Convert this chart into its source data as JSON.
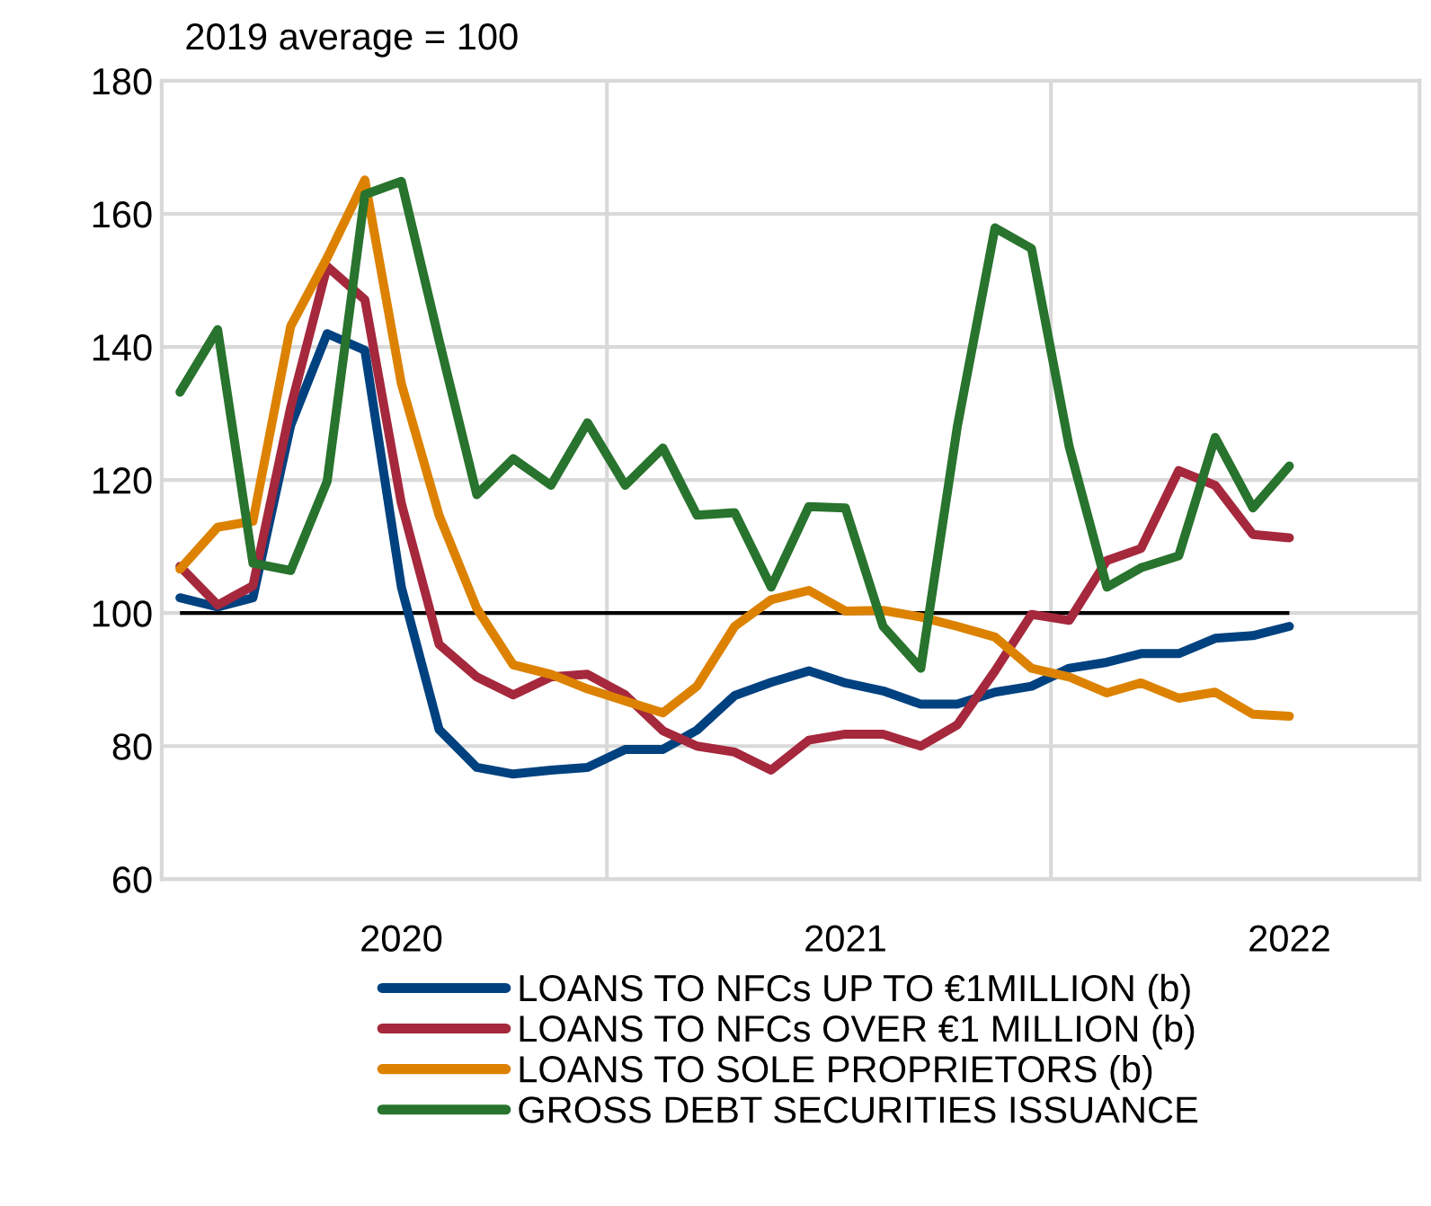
{
  "chart_data": {
    "type": "line",
    "title": "2019 average = 100",
    "x": [
      "2020-01-16",
      "2020-02-16",
      "2020-03-16",
      "2020-04-16",
      "2020-05-16",
      "2020-06-16",
      "2020-07-16",
      "2020-08-16",
      "2020-09-16",
      "2020-10-16",
      "2020-11-16",
      "2020-12-16",
      "2021-01-16",
      "2021-02-16",
      "2021-03-16",
      "2021-04-16",
      "2021-05-16",
      "2021-06-16",
      "2021-07-16",
      "2021-08-16",
      "2021-09-16",
      "2021-10-16",
      "2021-11-16",
      "2021-12-16",
      "2022-01-16",
      "2022-02-16",
      "2022-03-16",
      "2022-04-16",
      "2022-05-16",
      "2022-06-16",
      "2022-07-16"
    ],
    "series": [
      {
        "name": "LOANS TO NFCs UP TO €1MILLION (b)",
        "color": "#00417f",
        "values": [
          102.3,
          100.9,
          102.3,
          128.2,
          142.0,
          139.5,
          103.9,
          82.5,
          76.8,
          75.8,
          76.4,
          76.8,
          79.5,
          79.5,
          82.4,
          87.6,
          89.6,
          91.3,
          89.5,
          88.3,
          86.3,
          86.3,
          88.1,
          89.0,
          91.7,
          92.6,
          93.9,
          93.9,
          96.2,
          96.6,
          98.0
        ]
      },
      {
        "name": "LOANS TO NFCs OVER €1 MILLION (b)",
        "color": "#a5283c",
        "values": [
          107.0,
          101.2,
          104.1,
          130.9,
          152.1,
          147.1,
          116.5,
          95.3,
          90.4,
          87.7,
          90.4,
          90.8,
          87.7,
          82.3,
          80.0,
          79.1,
          76.4,
          80.9,
          81.8,
          81.8,
          80.0,
          83.2,
          91.3,
          99.8,
          98.9,
          107.9,
          109.7,
          121.4,
          119.2,
          111.8,
          111.3
        ]
      },
      {
        "name": "LOANS TO SOLE PROPRIETORS (b)",
        "color": "#dc8200",
        "values": [
          106.6,
          112.9,
          113.8,
          143.1,
          153.4,
          165.1,
          134.5,
          114.7,
          100.7,
          92.2,
          90.8,
          88.6,
          86.8,
          85.0,
          89.0,
          98.0,
          102.0,
          103.4,
          100.3,
          100.4,
          99.4,
          98.0,
          96.4,
          91.7,
          90.4,
          88.0,
          89.5,
          87.2,
          88.1,
          84.8,
          84.5
        ]
      },
      {
        "name": "GROSS DEBT SECURITIES ISSUANCE",
        "color": "#28732d",
        "values": [
          133.2,
          142.6,
          107.5,
          106.4,
          119.8,
          162.9,
          164.9,
          141.0,
          117.8,
          123.2,
          119.2,
          128.6,
          119.2,
          124.8,
          114.7,
          115.1,
          103.9,
          116.0,
          115.8,
          98.0,
          91.7,
          128.0,
          157.9,
          154.8,
          125.0,
          103.9,
          106.8,
          108.6,
          126.4,
          115.8,
          122.1
        ]
      }
    ],
    "xlim": [
      "2020-01-01",
      "2022-10-31"
    ],
    "xticks": [
      {
        "value": "2020-07-16",
        "label": "2020"
      },
      {
        "value": "2021-07-16",
        "label": "2021"
      },
      {
        "value": "2022-07-16",
        "label": "2022"
      }
    ],
    "ylim": [
      60,
      180
    ],
    "yticks": [
      60,
      80,
      100,
      120,
      140,
      160,
      180
    ],
    "ref_lines": [
      {
        "axis": "y",
        "value": 100,
        "color": "#000000"
      },
      {
        "axis": "x",
        "value": "2021-01-01",
        "color": "#d9d9d9"
      },
      {
        "axis": "x",
        "value": "2022-01-01",
        "color": "#d9d9d9"
      }
    ],
    "grid": "y",
    "legend": "bottom",
    "marker": "none",
    "line_style": "solid"
  }
}
